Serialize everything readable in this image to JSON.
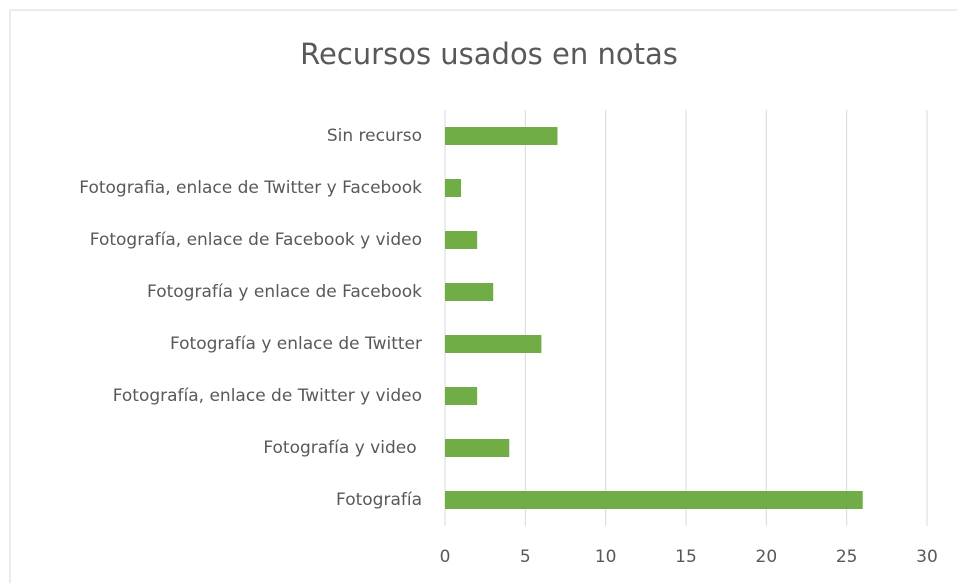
{
  "chart_data": {
    "type": "bar",
    "orientation": "horizontal",
    "title": "Recursos usados en notas",
    "categories": [
      "Sin recurso",
      "Fotografia, enlace de Twitter y Facebook",
      "Fotografía, enlace de Facebook y video",
      "Fotografía y enlace de Facebook",
      "Fotografía y enlace de Twitter",
      "Fotografía, enlace de Twitter y video",
      "Fotografía y video ",
      "Fotografía"
    ],
    "values": [
      7,
      1,
      2,
      3,
      6,
      2,
      4,
      26
    ],
    "color": "#70ad47",
    "xlim": [
      0,
      30
    ],
    "xticks": [
      0,
      5,
      10,
      15,
      20,
      25,
      30
    ],
    "grid": true
  }
}
